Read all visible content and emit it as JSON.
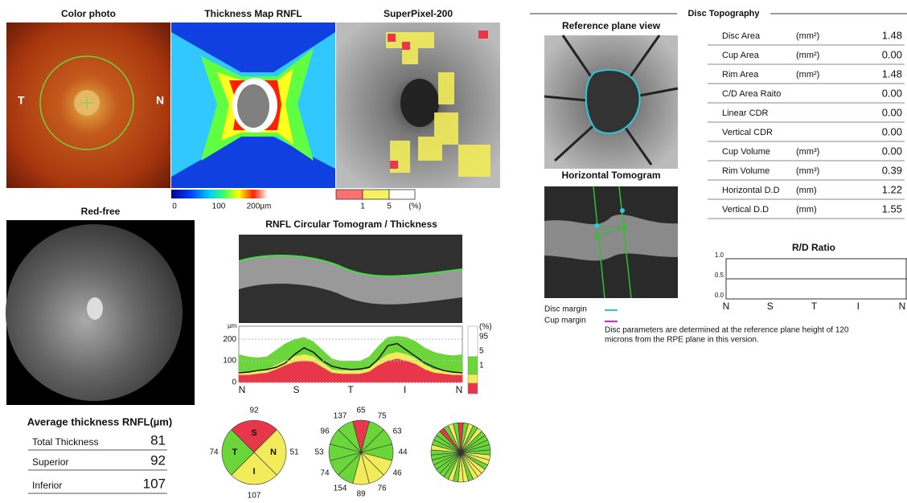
{
  "color_photo": {
    "title": "Color photo",
    "left_label": "T",
    "right_label": "N"
  },
  "thickness_map": {
    "title": "Thickness Map RNFL",
    "scale_labels": [
      "0",
      "100",
      "200µm"
    ]
  },
  "superpixel": {
    "title": "SuperPixel-200",
    "legend_labels": [
      "1",
      "5",
      "(%)"
    ]
  },
  "red_free": {
    "title": "Red-free"
  },
  "average_thickness": {
    "title": "Average thickness RNFL(µm)",
    "rows": [
      {
        "label": "Total Thickness",
        "value": 81
      },
      {
        "label": "Superior",
        "value": 92
      },
      {
        "label": "Inferior",
        "value": 107
      }
    ]
  },
  "rnfl_graph": {
    "type": "line",
    "title": "RNFL Circular Tomogram / Thickness",
    "y_unit": "µm",
    "ylim": [
      0,
      260
    ],
    "yticks": [
      0,
      100,
      200
    ],
    "x_labels": [
      "N",
      "S",
      "T",
      "I",
      "N"
    ],
    "percent_labels": [
      "(%)",
      "95",
      "5",
      "1"
    ],
    "thickness": [
      45,
      48,
      55,
      60,
      70,
      90,
      130,
      160,
      140,
      100,
      75,
      65,
      60,
      62,
      70,
      110,
      170,
      180,
      150,
      120,
      90,
      70,
      55,
      48,
      45
    ],
    "p95": [
      130,
      120,
      115,
      120,
      150,
      180,
      200,
      210,
      190,
      150,
      110,
      100,
      100,
      100,
      120,
      170,
      210,
      215,
      210,
      190,
      160,
      140,
      130,
      125,
      130
    ],
    "p5": [
      50,
      50,
      55,
      60,
      80,
      100,
      120,
      130,
      120,
      90,
      60,
      55,
      55,
      55,
      65,
      100,
      130,
      140,
      130,
      110,
      80,
      60,
      55,
      50,
      50
    ],
    "p1": [
      35,
      35,
      40,
      45,
      60,
      80,
      95,
      100,
      95,
      70,
      45,
      40,
      40,
      40,
      50,
      80,
      100,
      110,
      100,
      85,
      60,
      45,
      40,
      35,
      35
    ]
  },
  "quadrants": {
    "type": "pie",
    "labels": [
      "S",
      "N",
      "I",
      "T"
    ],
    "values": [
      92,
      51,
      107,
      74
    ],
    "colors": [
      "#e8374a",
      "#f2ec5a",
      "#f2ec5a",
      "#6bd63a"
    ]
  },
  "clock_hours": {
    "type": "pie",
    "values": [
      65,
      75,
      63,
      44,
      46,
      76,
      89,
      154,
      74,
      53,
      96,
      137
    ],
    "colors": [
      "#e8374a",
      "#6bd63a",
      "#6bd63a",
      "#6bd63a",
      "#f2ec5a",
      "#f2ec5a",
      "#f2ec5a",
      "#6bd63a",
      "#6bd63a",
      "#6bd63a",
      "#6bd63a",
      "#6bd63a"
    ]
  },
  "sectors": {
    "colors": [
      "#e8374a",
      "#6bd63a",
      "#f2ec5a",
      "#6bd63a",
      "#f2ec5a",
      "#6bd63a",
      "#6bd63a",
      "#6bd63a",
      "#6bd63a",
      "#6bd63a",
      "#f2ec5a",
      "#f2ec5a",
      "#6bd63a",
      "#f2ec5a",
      "#f2ec5a",
      "#f2ec5a",
      "#6bd63a",
      "#f2ec5a",
      "#f2ec5a",
      "#6bd63a",
      "#f2ec5a",
      "#6bd63a",
      "#6bd63a",
      "#6bd63a",
      "#6bd63a",
      "#6bd63a",
      "#6bd63a",
      "#6bd63a",
      "#f2ec5a",
      "#6bd63a",
      "#6bd63a",
      "#6bd63a",
      "#e8374a",
      "#6bd63a",
      "#f2ec5a",
      "#6bd63a"
    ]
  },
  "disc_topography": {
    "title": "Disc Topography",
    "reference_title": "Reference plane view",
    "tomogram_title": "Horizontal Tomogram",
    "params": [
      {
        "name": "Disc Area",
        "unit": "(mm²)",
        "value": "1.48"
      },
      {
        "name": "Cup Area",
        "unit": "(mm²)",
        "value": "0.00"
      },
      {
        "name": "Rim Area",
        "unit": "(mm²)",
        "value": "1.48"
      },
      {
        "name": "C/D Area Raito",
        "unit": "",
        "value": "0.00"
      },
      {
        "name": "Linear CDR",
        "unit": "",
        "value": "0.00"
      },
      {
        "name": "Vertical CDR",
        "unit": "",
        "value": "0.00"
      },
      {
        "name": "Cup Volume",
        "unit": "(mm³)",
        "value": "0.00"
      },
      {
        "name": "Rim Volume",
        "unit": "(mm³)",
        "value": "0.39"
      },
      {
        "name": "Horizontal D.D",
        "unit": "(mm)",
        "value": "1.22"
      },
      {
        "name": "Vertical D.D",
        "unit": "(mm)",
        "value": "1.55"
      }
    ],
    "legend": [
      "Disc margin",
      "Cup margin"
    ],
    "note": [
      "Disc parameters are determined at the reference plane height of 120",
      "microns from the RPE plane in this version."
    ]
  },
  "rd_ratio": {
    "type": "line",
    "title": "R/D Ratio",
    "ylim": [
      0,
      1
    ],
    "yticks": [
      {
        "value": 0,
        "label": "0.0"
      },
      {
        "value": 0.5,
        "label": "0.5"
      },
      {
        "value": 1,
        "label": "1.0"
      }
    ],
    "x_labels": [
      "N",
      "S",
      "T",
      "I",
      "N"
    ]
  }
}
